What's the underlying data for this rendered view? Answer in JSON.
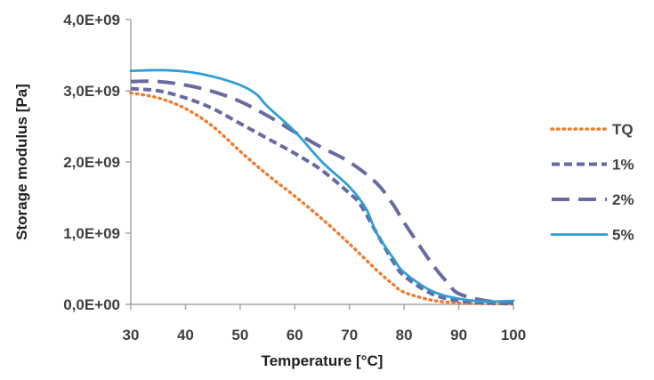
{
  "chart_data": {
    "type": "line",
    "title": "",
    "xlabel": "Temperature [°C]",
    "ylabel": "Storage modulus [Pa]",
    "xlim": [
      30,
      100
    ],
    "ylim": [
      0,
      4000000000
    ],
    "x_ticks": [
      {
        "value": 30,
        "label": "30"
      },
      {
        "value": 40,
        "label": "40"
      },
      {
        "value": 50,
        "label": "50"
      },
      {
        "value": 60,
        "label": "60"
      },
      {
        "value": 70,
        "label": "70"
      },
      {
        "value": 80,
        "label": "80"
      },
      {
        "value": 90,
        "label": "90"
      },
      {
        "value": 100,
        "label": "100"
      }
    ],
    "y_ticks": [
      {
        "value": 0,
        "label": "0,0E+00"
      },
      {
        "value": 1000000000,
        "label": "1,0E+09"
      },
      {
        "value": 2000000000,
        "label": "2,0E+09"
      },
      {
        "value": 3000000000,
        "label": "3,0E+09"
      },
      {
        "value": 4000000000,
        "label": "4,0E+09"
      }
    ],
    "grid": false,
    "legend_position": "right",
    "series": [
      {
        "name": "TQ",
        "color": "#ed7d31",
        "style": "dotted",
        "points": [
          [
            30,
            2970000000
          ],
          [
            35,
            2900000000
          ],
          [
            40,
            2750000000
          ],
          [
            45,
            2500000000
          ],
          [
            50,
            2150000000
          ],
          [
            55,
            1820000000
          ],
          [
            60,
            1520000000
          ],
          [
            65,
            1200000000
          ],
          [
            70,
            850000000
          ],
          [
            75,
            480000000
          ],
          [
            78,
            280000000
          ],
          [
            80,
            170000000
          ],
          [
            85,
            60000000
          ],
          [
            90,
            20000000
          ],
          [
            95,
            10000000
          ],
          [
            100,
            5000000
          ]
        ]
      },
      {
        "name": "1%",
        "color": "#6a6aa3",
        "style": "short-dash",
        "points": [
          [
            30,
            3030000000
          ],
          [
            35,
            3000000000
          ],
          [
            40,
            2900000000
          ],
          [
            45,
            2750000000
          ],
          [
            50,
            2540000000
          ],
          [
            55,
            2330000000
          ],
          [
            60,
            2120000000
          ],
          [
            65,
            1880000000
          ],
          [
            70,
            1560000000
          ],
          [
            72,
            1400000000
          ],
          [
            75,
            1000000000
          ],
          [
            78,
            600000000
          ],
          [
            80,
            400000000
          ],
          [
            85,
            150000000
          ],
          [
            90,
            50000000
          ],
          [
            95,
            20000000
          ],
          [
            100,
            10000000
          ]
        ]
      },
      {
        "name": "2%",
        "color": "#6a6aa3",
        "style": "long-dash",
        "points": [
          [
            30,
            3130000000
          ],
          [
            35,
            3130000000
          ],
          [
            40,
            3080000000
          ],
          [
            45,
            2990000000
          ],
          [
            50,
            2850000000
          ],
          [
            55,
            2650000000
          ],
          [
            60,
            2420000000
          ],
          [
            65,
            2200000000
          ],
          [
            70,
            2000000000
          ],
          [
            75,
            1700000000
          ],
          [
            78,
            1400000000
          ],
          [
            80,
            1150000000
          ],
          [
            85,
            580000000
          ],
          [
            88,
            300000000
          ],
          [
            90,
            150000000
          ],
          [
            95,
            50000000
          ],
          [
            100,
            20000000
          ]
        ]
      },
      {
        "name": "5%",
        "color": "#2e9fd6",
        "style": "solid",
        "points": [
          [
            30,
            3280000000
          ],
          [
            35,
            3290000000
          ],
          [
            40,
            3270000000
          ],
          [
            45,
            3200000000
          ],
          [
            50,
            3080000000
          ],
          [
            53,
            2950000000
          ],
          [
            55,
            2780000000
          ],
          [
            60,
            2430000000
          ],
          [
            65,
            2000000000
          ],
          [
            70,
            1650000000
          ],
          [
            73,
            1350000000
          ],
          [
            75,
            1000000000
          ],
          [
            78,
            650000000
          ],
          [
            80,
            450000000
          ],
          [
            85,
            190000000
          ],
          [
            90,
            80000000
          ],
          [
            95,
            40000000
          ],
          [
            100,
            50000000
          ]
        ]
      }
    ]
  }
}
